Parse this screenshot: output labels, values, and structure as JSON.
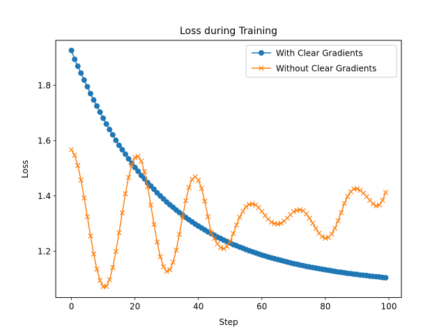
{
  "chart_data": {
    "type": "line",
    "title": "Loss during Training",
    "xlabel": "Step",
    "ylabel": "Loss",
    "xlim": [
      -4.95,
      103.95
    ],
    "ylim": [
      1.0325,
      1.9625
    ],
    "xticks": [
      0,
      20,
      40,
      60,
      80,
      100
    ],
    "yticks": [
      1.2,
      1.4,
      1.6,
      1.8
    ],
    "ytick_labels": [
      "1.2",
      "1.4",
      "1.6",
      "1.8"
    ],
    "grid": false,
    "legend_position": "top-right",
    "colors": {
      "with": "#1f77b4",
      "without": "#ff7f0e"
    },
    "series": [
      {
        "name": "With Clear Gradients",
        "marker": "circle",
        "color": "#1f77b4",
        "x": [
          0,
          1,
          2,
          3,
          4,
          5,
          6,
          7,
          8,
          9,
          10,
          11,
          12,
          13,
          14,
          15,
          16,
          17,
          18,
          19,
          20,
          21,
          22,
          23,
          24,
          25,
          26,
          27,
          28,
          29,
          30,
          31,
          32,
          33,
          34,
          35,
          36,
          37,
          38,
          39,
          40,
          41,
          42,
          43,
          44,
          45,
          46,
          47,
          48,
          49,
          50,
          51,
          52,
          53,
          54,
          55,
          56,
          57,
          58,
          59,
          60,
          61,
          62,
          63,
          64,
          65,
          66,
          67,
          68,
          69,
          70,
          71,
          72,
          73,
          74,
          75,
          76,
          77,
          78,
          79,
          80,
          81,
          82,
          83,
          84,
          85,
          86,
          87,
          88,
          89,
          90,
          91,
          92,
          93,
          94,
          95,
          96,
          97,
          98,
          99
        ],
        "y": [
          1.926,
          1.894,
          1.869,
          1.844,
          1.819,
          1.795,
          1.77,
          1.747,
          1.725,
          1.703,
          1.681,
          1.66,
          1.64,
          1.621,
          1.601,
          1.583,
          1.567,
          1.551,
          1.534,
          1.518,
          1.503,
          1.489,
          1.474,
          1.462,
          1.448,
          1.436,
          1.424,
          1.411,
          1.4,
          1.389,
          1.378,
          1.368,
          1.359,
          1.349,
          1.34,
          1.331,
          1.322,
          1.314,
          1.306,
          1.298,
          1.291,
          1.284,
          1.277,
          1.27,
          1.264,
          1.258,
          1.251,
          1.246,
          1.24,
          1.235,
          1.23,
          1.224,
          1.22,
          1.215,
          1.211,
          1.206,
          1.202,
          1.198,
          1.194,
          1.19,
          1.186,
          1.183,
          1.179,
          1.176,
          1.173,
          1.17,
          1.167,
          1.164,
          1.161,
          1.158,
          1.155,
          1.153,
          1.15,
          1.148,
          1.145,
          1.143,
          1.141,
          1.139,
          1.137,
          1.135,
          1.133,
          1.131,
          1.129,
          1.127,
          1.125,
          1.124,
          1.122,
          1.12,
          1.119,
          1.117,
          1.116,
          1.114,
          1.113,
          1.112,
          1.11,
          1.109,
          1.108,
          1.107,
          1.105,
          1.104
        ]
      },
      {
        "name": "Without Clear Gradients",
        "marker": "x",
        "color": "#ff7f0e",
        "x": [
          0,
          1,
          2,
          3,
          4,
          5,
          6,
          7,
          8,
          9,
          10,
          11,
          12,
          13,
          14,
          15,
          16,
          17,
          18,
          19,
          20,
          21,
          22,
          23,
          24,
          25,
          26,
          27,
          28,
          29,
          30,
          31,
          32,
          33,
          34,
          35,
          36,
          37,
          38,
          39,
          40,
          41,
          42,
          43,
          44,
          45,
          46,
          47,
          48,
          49,
          50,
          51,
          52,
          53,
          54,
          55,
          56,
          57,
          58,
          59,
          60,
          61,
          62,
          63,
          64,
          65,
          66,
          67,
          68,
          69,
          70,
          71,
          72,
          73,
          74,
          75,
          76,
          77,
          78,
          79,
          80,
          81,
          82,
          83,
          84,
          85,
          86,
          87,
          88,
          89,
          90,
          91,
          92,
          93,
          94,
          95,
          96,
          97,
          98,
          99
        ],
        "y": [
          1.567,
          1.547,
          1.51,
          1.457,
          1.393,
          1.325,
          1.255,
          1.19,
          1.135,
          1.094,
          1.072,
          1.073,
          1.097,
          1.141,
          1.199,
          1.267,
          1.339,
          1.408,
          1.467,
          1.512,
          1.539,
          1.543,
          1.526,
          1.488,
          1.433,
          1.367,
          1.297,
          1.233,
          1.18,
          1.144,
          1.127,
          1.133,
          1.16,
          1.204,
          1.261,
          1.324,
          1.383,
          1.43,
          1.46,
          1.469,
          1.457,
          1.427,
          1.381,
          1.325,
          1.267,
          1.246,
          1.227,
          1.213,
          1.209,
          1.217,
          1.236,
          1.264,
          1.295,
          1.323,
          1.344,
          1.361,
          1.369,
          1.371,
          1.367,
          1.358,
          1.344,
          1.329,
          1.316,
          1.305,
          1.3,
          1.298,
          1.301,
          1.309,
          1.32,
          1.332,
          1.343,
          1.348,
          1.35,
          1.346,
          1.335,
          1.319,
          1.301,
          1.282,
          1.265,
          1.253,
          1.247,
          1.25,
          1.262,
          1.283,
          1.31,
          1.34,
          1.373,
          1.398,
          1.416,
          1.425,
          1.426,
          1.42,
          1.41,
          1.397,
          1.384,
          1.371,
          1.364,
          1.367,
          1.384,
          1.413
        ]
      }
    ]
  }
}
